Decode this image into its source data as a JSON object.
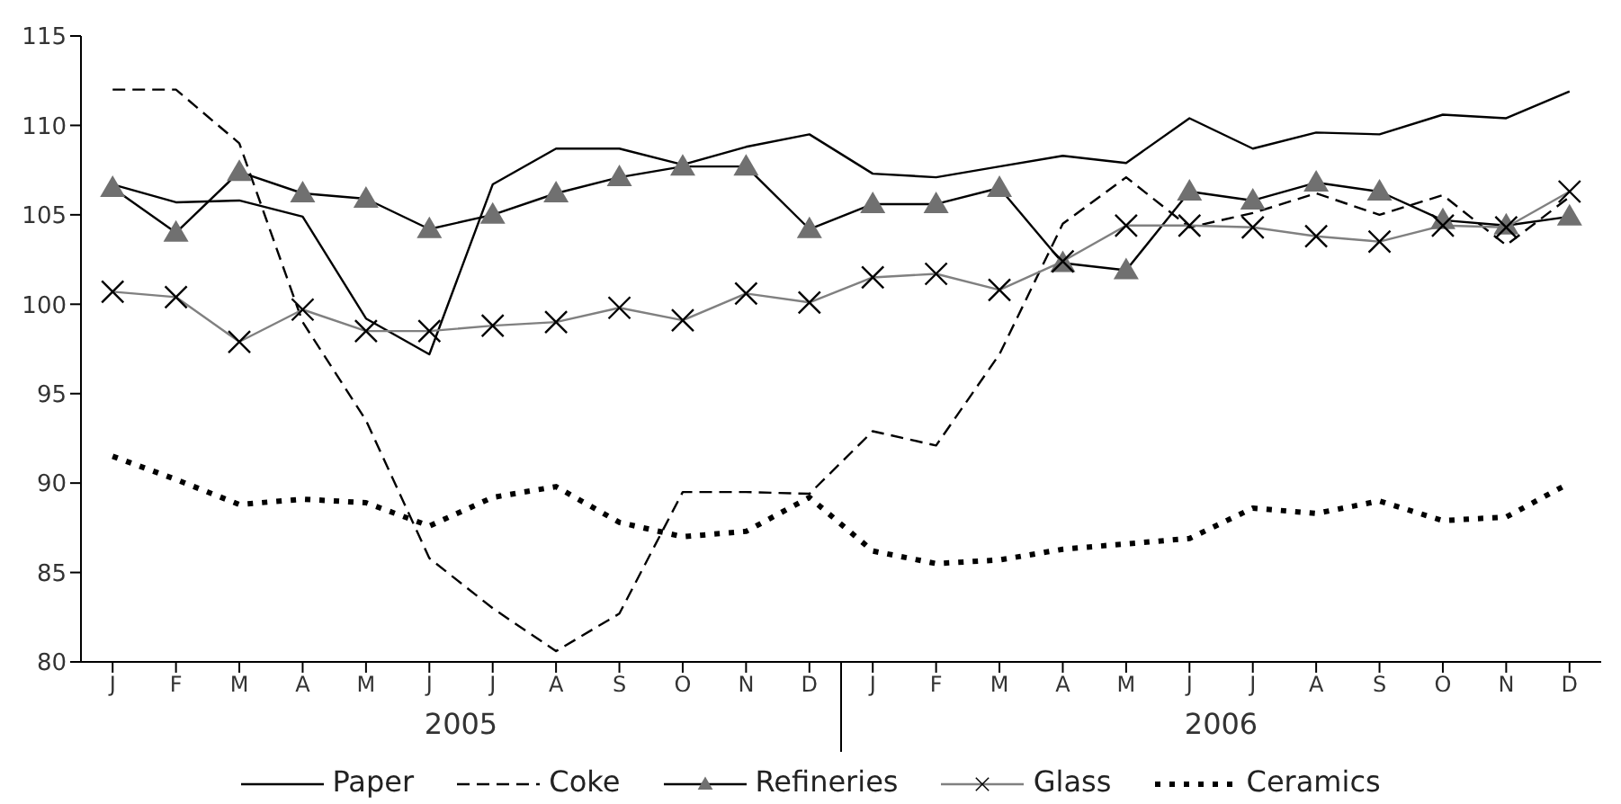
{
  "chart_data": {
    "type": "line",
    "categories": [
      "J",
      "F",
      "M",
      "A",
      "M",
      "J",
      "J",
      "A",
      "S",
      "O",
      "N",
      "D",
      "J",
      "F",
      "M",
      "A",
      "M",
      "J",
      "J",
      "A",
      "S",
      "O",
      "N",
      "D"
    ],
    "annotations": [
      "2005",
      "2006"
    ],
    "ylim": [
      80,
      115
    ],
    "yticks": [
      80,
      85,
      90,
      95,
      100,
      105,
      110,
      115
    ],
    "grid": false,
    "legend": "bottom",
    "series": [
      {
        "name": "Paper",
        "color": "#000000",
        "line_style": "solid",
        "marker": "none",
        "values": [
          106.7,
          105.7,
          105.8,
          104.9,
          99.2,
          97.2,
          106.7,
          108.7,
          108.7,
          107.8,
          108.8,
          109.5,
          107.3,
          107.1,
          107.7,
          108.3,
          107.9,
          110.4,
          108.7,
          109.6,
          109.5,
          110.6,
          110.4,
          111.9
        ]
      },
      {
        "name": "Coke",
        "color": "#000000",
        "line_style": "dashed",
        "marker": "none",
        "values": [
          112,
          112,
          109,
          99,
          93.5,
          85.8,
          83,
          80.6,
          82.7,
          89.5,
          89.5,
          89.4,
          92.9,
          92.1,
          97.2,
          104.5,
          107.1,
          104.3,
          105.1,
          106.2,
          105,
          106.1,
          103.3,
          106
        ]
      },
      {
        "name": "Refineries",
        "color": "#000000",
        "line_style": "solid",
        "marker": "triangle",
        "values": [
          106.5,
          104,
          107.4,
          106.2,
          105.9,
          104.2,
          105,
          106.2,
          107.1,
          107.7,
          107.7,
          104.2,
          105.6,
          105.6,
          106.5,
          102.3,
          101.9,
          106.3,
          105.8,
          106.8,
          106.3,
          104.7,
          104.4,
          104.9
        ]
      },
      {
        "name": "Glass",
        "color": "#808080",
        "line_style": "solid",
        "marker": "cross",
        "values": [
          100.7,
          100.4,
          97.9,
          99.7,
          98.5,
          98.5,
          98.8,
          99,
          99.8,
          99.1,
          100.6,
          100.1,
          101.5,
          101.7,
          100.8,
          102.4,
          104.4,
          104.4,
          104.3,
          103.8,
          103.5,
          104.4,
          104.3,
          106.3
        ]
      },
      {
        "name": "Ceramics",
        "color": "#000000",
        "line_style": "dotted",
        "marker": "none",
        "values": [
          91.5,
          90.2,
          88.8,
          89.1,
          88.9,
          87.6,
          89.2,
          89.8,
          87.8,
          87,
          87.3,
          89.2,
          86.2,
          85.5,
          85.7,
          86.3,
          86.6,
          86.9,
          88.6,
          88.3,
          89,
          87.9,
          88.1,
          90
        ]
      }
    ]
  }
}
